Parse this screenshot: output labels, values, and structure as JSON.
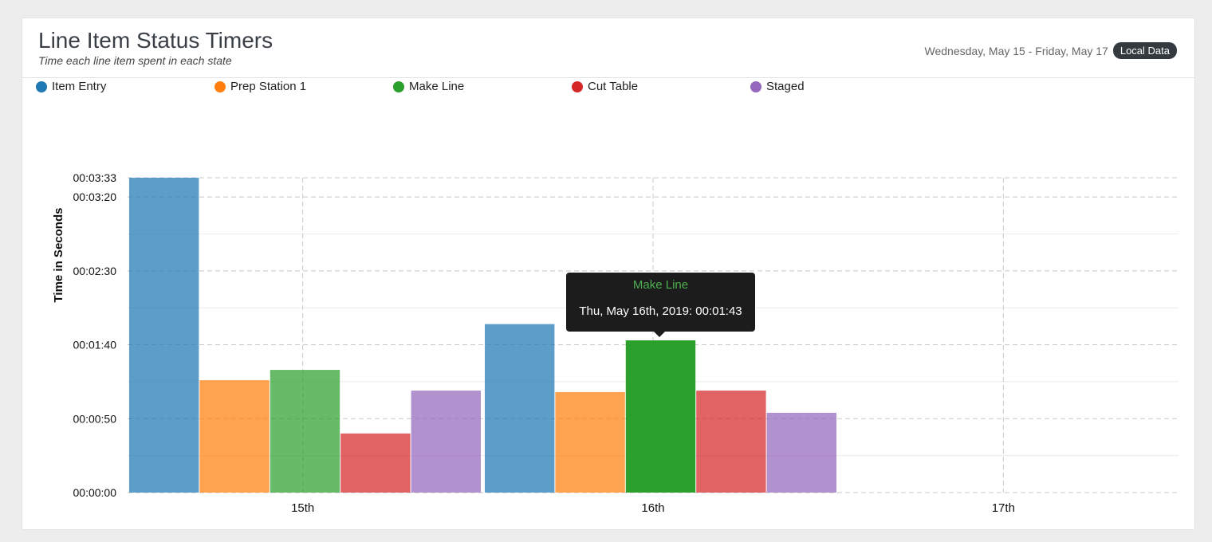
{
  "header": {
    "title": "Line Item Status Timers",
    "subtitle": "Time each line item spent in each state",
    "date_range": "Wednesday, May 15 - Friday, May 17",
    "badge": "Local Data"
  },
  "tooltip": {
    "series": "Make Line",
    "text": "Thu, May 16th, 2019: 00:01:43"
  },
  "chart_data": {
    "type": "bar",
    "ylabel": "Time in Seconds",
    "xlabel": "",
    "ylim": [
      0,
      213
    ],
    "yticks": [
      {
        "value": 0,
        "label": "00:00:00"
      },
      {
        "value": 50,
        "label": "00:00:50"
      },
      {
        "value": 100,
        "label": "00:01:40"
      },
      {
        "value": 150,
        "label": "00:02:30"
      },
      {
        "value": 200,
        "label": "00:03:20"
      },
      {
        "value": 213,
        "label": "00:03:33"
      }
    ],
    "categories": [
      "15th",
      "16th",
      "17th"
    ],
    "grid": true,
    "legend": "top-left",
    "series": [
      {
        "name": "Item Entry",
        "color": "#1f77b4",
        "values": [
          213,
          114,
          null
        ]
      },
      {
        "name": "Prep Station 1",
        "color": "#ff7f0e",
        "values": [
          76,
          68,
          null
        ]
      },
      {
        "name": "Make Line",
        "color": "#2ca02c",
        "values": [
          83,
          103,
          null
        ]
      },
      {
        "name": "Cut Table",
        "color": "#d62728",
        "values": [
          40,
          69,
          null
        ]
      },
      {
        "name": "Staged",
        "color": "#9467bd",
        "values": [
          69,
          54,
          null
        ]
      }
    ]
  }
}
